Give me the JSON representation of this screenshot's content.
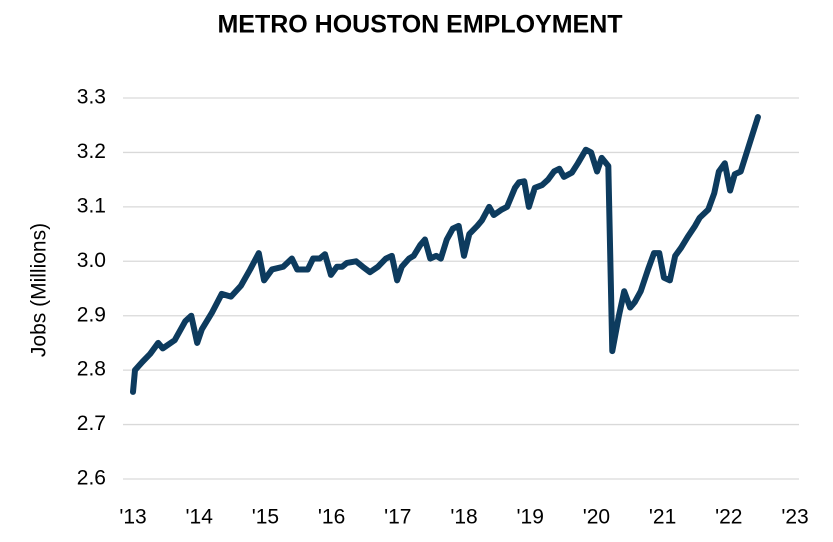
{
  "chart_data": {
    "type": "line",
    "title": "METRO HOUSTON EMPLOYMENT",
    "y_label": "Jobs (Millions)",
    "x": [
      2013.0,
      2013.03,
      2013.14,
      2013.26,
      2013.38,
      2013.45,
      2013.63,
      2013.79,
      2013.88,
      2013.97,
      2014.04,
      2014.19,
      2014.34,
      2014.48,
      2014.63,
      2014.77,
      2014.9,
      2014.98,
      2015.1,
      2015.27,
      2015.4,
      2015.48,
      2015.64,
      2015.72,
      2015.82,
      2015.9,
      2015.99,
      2016.08,
      2016.16,
      2016.23,
      2016.37,
      2016.47,
      2016.58,
      2016.7,
      2016.82,
      2016.91,
      2016.99,
      2017.06,
      2017.17,
      2017.24,
      2017.34,
      2017.41,
      2017.49,
      2017.58,
      2017.65,
      2017.74,
      2017.83,
      2017.92,
      2018.0,
      2018.08,
      2018.2,
      2018.27,
      2018.38,
      2018.45,
      2018.57,
      2018.65,
      2018.77,
      2018.83,
      2018.91,
      2018.98,
      2019.07,
      2019.18,
      2019.27,
      2019.36,
      2019.44,
      2019.51,
      2019.63,
      2019.72,
      2019.84,
      2019.92,
      2020.01,
      2020.08,
      2020.18,
      2020.24,
      2020.34,
      2020.42,
      2020.51,
      2020.58,
      2020.67,
      2020.78,
      2020.87,
      2020.95,
      2021.02,
      2021.11,
      2021.19,
      2021.28,
      2021.38,
      2021.49,
      2021.56,
      2021.69,
      2021.78,
      2021.85,
      2021.94,
      2022.02,
      2022.09,
      2022.18,
      2022.44
    ],
    "values": [
      2.76,
      2.8,
      2.815,
      2.83,
      2.85,
      2.84,
      2.855,
      2.89,
      2.9,
      2.85,
      2.875,
      2.905,
      2.94,
      2.935,
      2.955,
      2.985,
      3.015,
      2.965,
      2.985,
      2.99,
      3.005,
      2.985,
      2.985,
      3.005,
      3.005,
      3.013,
      2.975,
      2.99,
      2.99,
      2.997,
      3.0,
      2.99,
      2.98,
      2.99,
      3.005,
      3.01,
      2.965,
      2.99,
      3.005,
      3.01,
      3.03,
      3.04,
      3.005,
      3.01,
      3.005,
      3.04,
      3.06,
      3.065,
      3.01,
      3.05,
      3.065,
      3.075,
      3.1,
      3.085,
      3.095,
      3.1,
      3.135,
      3.145,
      3.147,
      3.1,
      3.135,
      3.14,
      3.15,
      3.165,
      3.17,
      3.155,
      3.163,
      3.18,
      3.205,
      3.2,
      3.165,
      3.19,
      3.175,
      2.835,
      2.9,
      2.945,
      2.915,
      2.925,
      2.945,
      2.985,
      3.015,
      3.015,
      2.97,
      2.965,
      3.01,
      3.025,
      3.045,
      3.065,
      3.08,
      3.095,
      3.125,
      3.165,
      3.18,
      3.13,
      3.16,
      3.165,
      3.265
    ],
    "color": "#0d3b5e",
    "xlim": [
      2013,
      2023
    ],
    "xticks": [
      {
        "value": 2013,
        "label": "'13"
      },
      {
        "value": 2014,
        "label": "'14"
      },
      {
        "value": 2015,
        "label": "'15"
      },
      {
        "value": 2016,
        "label": "'16"
      },
      {
        "value": 2017,
        "label": "'17"
      },
      {
        "value": 2018,
        "label": "'18"
      },
      {
        "value": 2019,
        "label": "'19"
      },
      {
        "value": 2020,
        "label": "'20"
      },
      {
        "value": 2021,
        "label": "'21"
      },
      {
        "value": 2022,
        "label": "'22"
      },
      {
        "value": 2023,
        "label": "'23"
      }
    ],
    "ylim": [
      2.6,
      3.3
    ],
    "yticks": [
      2.6,
      2.7,
      2.8,
      2.9,
      {
        "value": 3,
        "label": "3.0"
      },
      3.1,
      3.2,
      3.3
    ],
    "grid": true
  }
}
